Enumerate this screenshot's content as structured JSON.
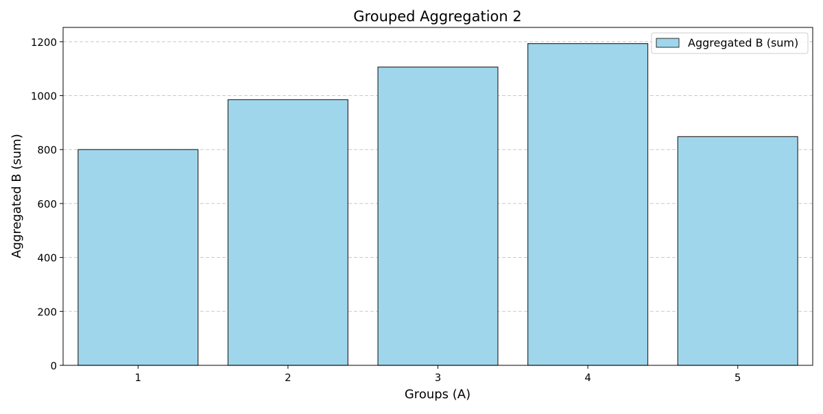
{
  "chart_data": {
    "type": "bar",
    "title": "Grouped Aggregation 2",
    "xlabel": "Groups (A)",
    "ylabel": "Aggregated B (sum)",
    "categories": [
      "1",
      "2",
      "3",
      "4",
      "5"
    ],
    "series": [
      {
        "name": "Aggregated B (sum)",
        "values": [
          800,
          985,
          1106,
          1193,
          848
        ]
      }
    ],
    "ylim": [
      0,
      1253
    ],
    "yticks": [
      0,
      200,
      400,
      600,
      800,
      1000,
      1200
    ],
    "grid": {
      "y": true,
      "style": "dashed"
    },
    "legend_position": "top-right",
    "colors": {
      "bar_fill": "#a0d6ec",
      "bar_edge": "#2b2b2b",
      "grid": "#c8c8c8",
      "axis": "#000000"
    }
  }
}
